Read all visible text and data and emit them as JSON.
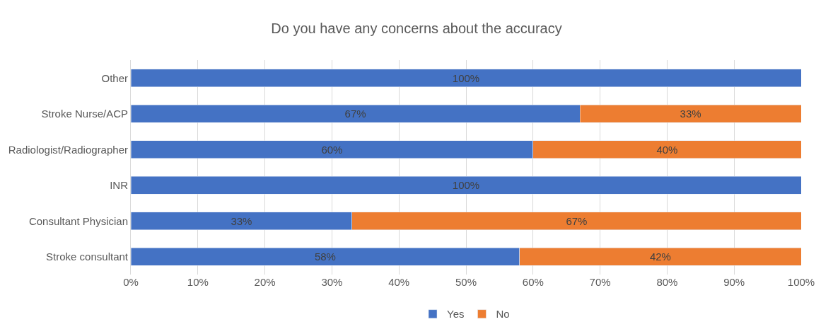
{
  "chart_data": {
    "type": "bar",
    "title": "Do you have any concerns about the accuracy",
    "orientation": "horizontal",
    "stacked": true,
    "categories": [
      "Other",
      "Stroke Nurse/ACP",
      "Radiologist/Radiographer",
      "INR",
      "Consultant Physician",
      "Stroke consultant"
    ],
    "series": [
      {
        "name": "Yes",
        "color": "#4472c4",
        "values": [
          100,
          67,
          60,
          100,
          33,
          58
        ],
        "value_labels": [
          "100%",
          "67%",
          "60%",
          "100%",
          "33%",
          "58%"
        ]
      },
      {
        "name": "No",
        "color": "#ed7d31",
        "values": [
          null,
          33,
          40,
          null,
          67,
          42
        ],
        "value_labels": [
          null,
          "33%",
          "40%",
          null,
          "67%",
          "42%"
        ]
      }
    ],
    "xlim": [
      0,
      100
    ],
    "xticks": [
      {
        "value": 0,
        "label": "0%"
      },
      {
        "value": 10,
        "label": "10%"
      },
      {
        "value": 20,
        "label": "20%"
      },
      {
        "value": 30,
        "label": "30%"
      },
      {
        "value": 40,
        "label": "40%"
      },
      {
        "value": 50,
        "label": "50%"
      },
      {
        "value": 60,
        "label": "60%"
      },
      {
        "value": 70,
        "label": "70%"
      },
      {
        "value": 80,
        "label": "80%"
      },
      {
        "value": 90,
        "label": "90%"
      },
      {
        "value": 100,
        "label": "100%"
      }
    ],
    "grid": "x",
    "legend": "bottom"
  }
}
